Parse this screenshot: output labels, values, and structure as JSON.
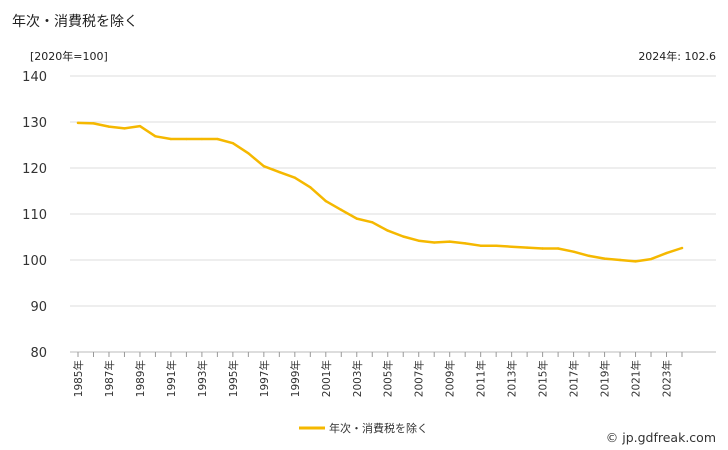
{
  "chart_data": {
    "type": "line",
    "title": "年次・消費税を除く",
    "unit_label": "[2020年=100]",
    "latest_label": "2024年: 102.6",
    "ylim": [
      80,
      140
    ],
    "y_ticks": [
      80,
      90,
      100,
      110,
      120,
      130,
      140
    ],
    "grid": true,
    "legend_position": "bottom-center",
    "x": [
      1985,
      1986,
      1987,
      1988,
      1989,
      1990,
      1991,
      1992,
      1993,
      1994,
      1995,
      1996,
      1997,
      1998,
      1999,
      2000,
      2001,
      2002,
      2003,
      2004,
      2005,
      2006,
      2007,
      2008,
      2009,
      2010,
      2011,
      2012,
      2013,
      2014,
      2015,
      2016,
      2017,
      2018,
      2019,
      2020,
      2021,
      2022,
      2023,
      2024
    ],
    "x_tick_labels": [
      "1985年",
      "1987年",
      "1989年",
      "1991年",
      "1993年",
      "1995年",
      "1997年",
      "1999年",
      "2001年",
      "2003年",
      "2005年",
      "2007年",
      "2009年",
      "2011年",
      "2013年",
      "2015年",
      "2017年",
      "2019年",
      "2021年",
      "2023年"
    ],
    "series": [
      {
        "name": "年次・消費税を除く",
        "color": "#f5b800",
        "values": [
          129.8,
          129.7,
          129.0,
          128.6,
          129.1,
          126.9,
          126.3,
          126.3,
          126.3,
          126.3,
          125.4,
          123.2,
          120.4,
          119.1,
          117.9,
          115.8,
          112.8,
          110.9,
          109.0,
          108.2,
          106.4,
          105.1,
          104.2,
          103.8,
          104.0,
          103.6,
          103.1,
          103.1,
          102.9,
          102.7,
          102.5,
          102.5,
          101.8,
          100.9,
          100.3,
          100.0,
          99.7,
          100.2,
          101.5,
          102.6
        ]
      }
    ]
  },
  "footer": {
    "credit": "© jp.gdfreak.com"
  }
}
